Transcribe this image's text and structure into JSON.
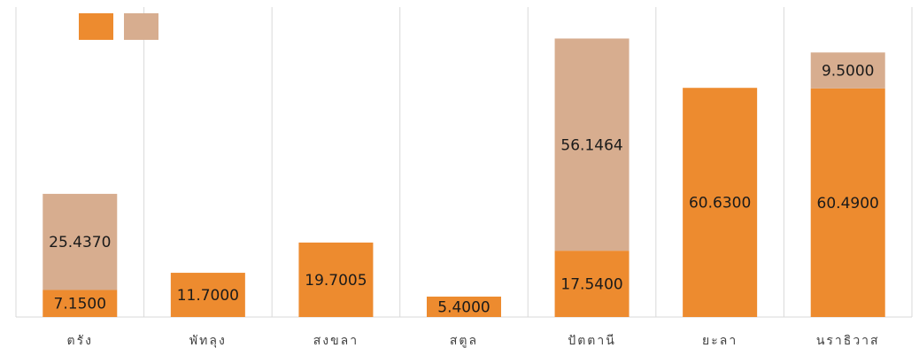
{
  "chart_data": {
    "type": "bar",
    "stacked": true,
    "categories": [
      "ตรัง",
      "พัทลุง",
      "สงขลา",
      "สตูล",
      "ปัตตานี",
      "ยะลา",
      "นราธิวาส"
    ],
    "series": [
      {
        "name": "",
        "color": "#ED8B2F",
        "values": [
          7.15,
          11.7,
          19.7005,
          5.4,
          17.54,
          60.63,
          60.49
        ],
        "labels": [
          "7.1500",
          "11.7000",
          "19.7005",
          "5.4000",
          "17.5400",
          "60.6300",
          "60.4900"
        ]
      },
      {
        "name": "",
        "color": "#D7AD8F",
        "values": [
          25.437,
          null,
          null,
          null,
          56.1464,
          null,
          9.5
        ],
        "labels": [
          "25.4370",
          "",
          "",
          "",
          "56.1464",
          "",
          "9.5000"
        ]
      }
    ],
    "ylim": [
      0,
      82
    ],
    "grid": "vertical category separators",
    "legend": "top-left"
  }
}
